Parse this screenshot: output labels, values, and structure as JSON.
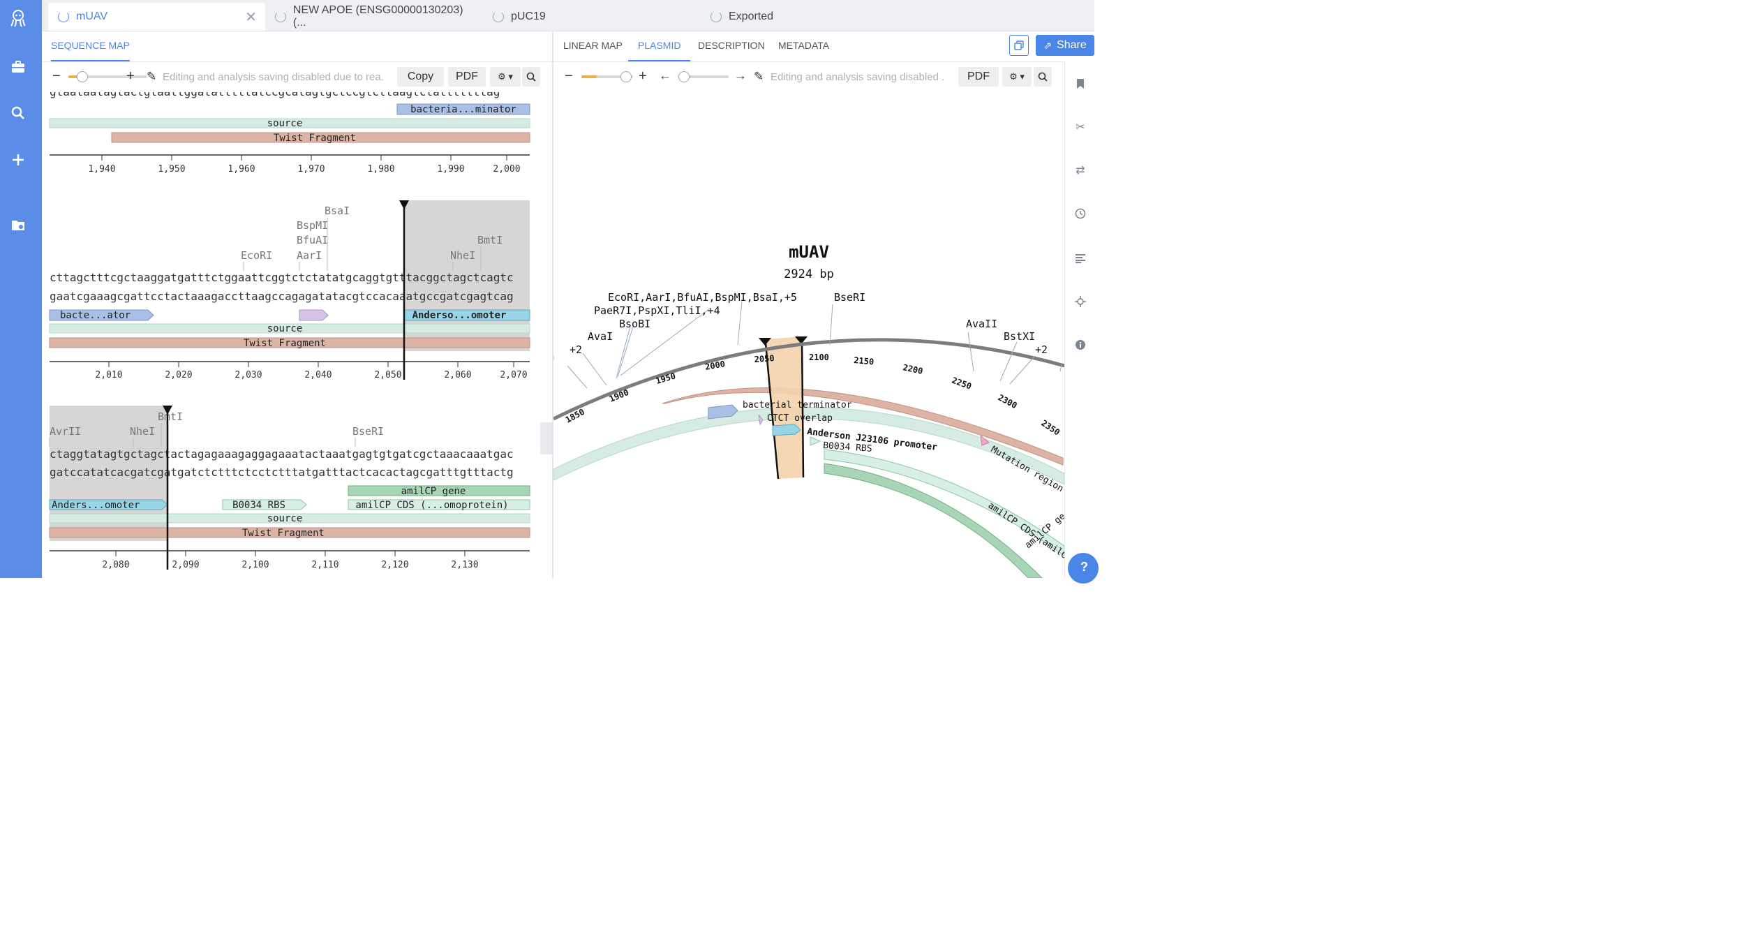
{
  "colors": {
    "sidebar": "#5b8de8",
    "accent": "#4a86e8",
    "source": "#d6ece2",
    "twist": "#dcb3a5",
    "terminator": "#a9c0e4",
    "promoter": "#98d3e6",
    "rbs": "#d8f0e4",
    "gene": "#a8d5b5"
  },
  "sidebar": {
    "icons": [
      "octopus-logo-icon",
      "briefcase-icon",
      "search-icon",
      "plus-icon",
      "folder-icon"
    ]
  },
  "tabs": [
    {
      "label": "mUAV",
      "active": true
    },
    {
      "label": "NEW APOE (ENSG00000130203) (...",
      "active": false
    },
    {
      "label": "pUC19",
      "active": false
    },
    {
      "label": "Exported",
      "active": false
    }
  ],
  "left": {
    "tabs": [
      "SEQUENCE MAP"
    ],
    "toolbar": {
      "copy": "Copy",
      "pdf": "PDF",
      "notice": "Editing and analysis saving disabled due to rea..."
    },
    "row1": {
      "seq_top": "gtaataatagtactgtaattggatatttttatccgcatagtgctccgtcttaagtctatttttttag",
      "features": [
        {
          "label": "bacteria...minator",
          "kind": "terminator"
        },
        {
          "label": "source",
          "kind": "source"
        },
        {
          "label": "Twist Fragment",
          "kind": "twist"
        }
      ],
      "ticks": [
        "1,940",
        "1,950",
        "1,960",
        "1,970",
        "1,980",
        "1,990",
        "2,000"
      ]
    },
    "row2": {
      "enzymes": [
        "BsaI",
        "BspMI",
        "BfuAI",
        "AarI",
        "EcoRI",
        "NheI",
        "BmtI"
      ],
      "seq_top": "cttagctttcgctaaggatgatttctggaattcggtctctatatgcaggtgtttacggctagctcagtc",
      "seq_bottom": "gaatcgaaagcgattcctactaaagaccttaagccagagatatacgtccacaaatgccgatcgagtcag",
      "features": [
        {
          "label": "bacte...ator",
          "kind": "terminator"
        },
        {
          "label": "",
          "kind": "overlap"
        },
        {
          "label": "Anderso...omoter",
          "kind": "promoter"
        },
        {
          "label": "source",
          "kind": "source"
        },
        {
          "label": "Twist Fragment",
          "kind": "twist"
        }
      ],
      "ticks": [
        "2,010",
        "2,020",
        "2,030",
        "2,040",
        "2,050",
        "2,060",
        "2,070"
      ]
    },
    "row3": {
      "enzymes": [
        "BmtI",
        "AvrII",
        "NheI",
        "BseRI"
      ],
      "seq_top": "ctaggtatagtgctagctactagagaaagaggagaaatactaaatgagtgtgatcgctaaacaaatgac",
      "seq_bottom": "gatccatatcacgatcgatgatctctttctcctctttatgatttactcacactagcgatttgtttactg",
      "features": [
        {
          "label": "amilCP gene",
          "kind": "gene"
        },
        {
          "label": "Anders...omoter",
          "kind": "promoter"
        },
        {
          "label": "B0034 RBS",
          "kind": "rbs"
        },
        {
          "label": "amilCP CDS (...omoprotein)",
          "kind": "gene"
        },
        {
          "label": "source",
          "kind": "source"
        },
        {
          "label": "Twist Fragment",
          "kind": "twist"
        }
      ],
      "ticks": [
        "2,080",
        "2,090",
        "2,100",
        "2,110",
        "2,120",
        "2,130"
      ]
    }
  },
  "right": {
    "tabs": [
      "LINEAR MAP",
      "PLASMID",
      "DESCRIPTION",
      "METADATA"
    ],
    "active_tab": "PLASMID",
    "share": "Share",
    "toolbar": {
      "pdf": "PDF",
      "notice": "Editing and analysis saving disabled ..."
    },
    "plasmid": {
      "name": "mUAV",
      "length": "2924 bp",
      "enzyme_labels": [
        "EcoRI,AarI,BfuAI,BspMI,BsaI,+5",
        "PaeR7I,PspXI,TliI,+4",
        "BsoBI",
        "AvaI",
        "+2",
        "BseRI",
        "AvaII",
        "BstXI",
        "+2"
      ],
      "ticks": [
        "1850",
        "1900",
        "1950",
        "2000",
        "2050",
        "2100",
        "2150",
        "2200",
        "2250",
        "2300",
        "2350"
      ],
      "features": [
        "bacterial terminator",
        "CTCT overlap",
        "Anderson J23106 promoter",
        "B0034 RBS",
        "Mutation region",
        "amilCP CDS (amilC",
        "amilCP ge"
      ]
    }
  },
  "rail_icons": [
    "bookmark-icon",
    "scissors-icon",
    "swap-icon",
    "clock-icon",
    "align-left-icon",
    "crosshair-icon",
    "info-icon"
  ],
  "help": "?"
}
